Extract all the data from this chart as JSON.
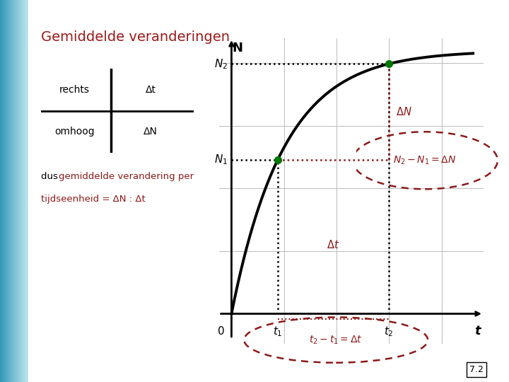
{
  "title": "Gemiddelde veranderingen",
  "title_color": "#9b1a1a",
  "bg_color": "#ffffff",
  "blue_bar_color": "#5bb8d4",
  "text_color": "#000000",
  "red_color": "#8b1a1a",
  "green_color": "#007700",
  "t1": 0.22,
  "t2": 0.75,
  "xlabel": "t",
  "ylabel": "N",
  "curve_color": "#000000",
  "page_number": "7.2",
  "ellipse1_text": "N₂ – N₁ = ΔN",
  "ellipse2_text": "t₂ – t₁ = Δt",
  "delta_t_label": "Δt",
  "delta_N_label": "ΔN",
  "rechts_label": "rechts",
  "omhoog_label": "omhoog",
  "dt_label": "Δt",
  "dN_label": "ΔN",
  "dus_black": "dus ",
  "dus_red": "gemiddelde verandering per",
  "dus_line2": "tijdseenheid = ΔN : Δt",
  "N1_label": "N₁",
  "N2_label": "N₂",
  "t1_label": "t₁",
  "t2_label": "t₂",
  "zero_label": "0",
  "grid_color": "#bbbbbb",
  "grid_linewidth": 0.7
}
